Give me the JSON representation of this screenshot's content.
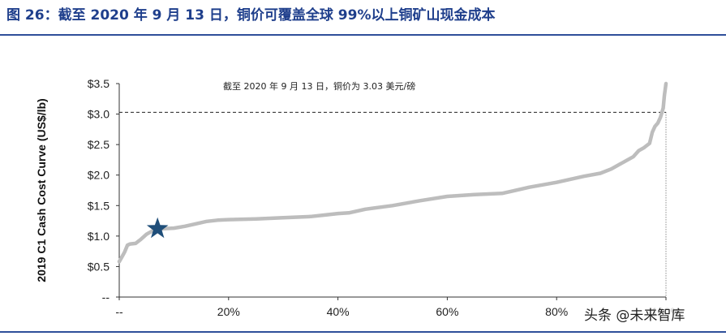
{
  "figure": {
    "title": "图 26：截至 2020 年 9 月 13 日，铜价可覆盖全球 99%以上铜矿山现金成本",
    "watermark": "头条 @未来智库"
  },
  "colors": {
    "title": "#1f3f8c",
    "rule": "#2f4f9a",
    "curve": "#bdbdbd",
    "star": "#1f4e79",
    "axis": "#333333"
  },
  "chart_data": {
    "type": "line",
    "title": "",
    "ylabel": "2019 C1 Cash Cost Curve (US$/lb)",
    "xlabel": "",
    "xlim": [
      0,
      100
    ],
    "ylim": [
      0,
      3.5
    ],
    "x_ticks": [
      0,
      20,
      40,
      60,
      80,
      100
    ],
    "x_tick_labels": [
      "--",
      "20%",
      "40%",
      "60%",
      "80%",
      "100%"
    ],
    "y_ticks": [
      0,
      0.5,
      1.0,
      1.5,
      2.0,
      2.5,
      3.0,
      3.5
    ],
    "y_tick_labels": [
      "--",
      "$0.5",
      "$1.0",
      "$1.5",
      "$2.0",
      "$2.5",
      "$3.0",
      "$3.5"
    ],
    "grid": false,
    "series": [
      {
        "x": [
          0,
          0.5,
          1,
          1.5,
          2,
          3,
          4,
          5,
          6,
          6.5,
          7,
          8,
          10,
          12,
          14,
          16,
          18,
          20,
          25,
          30,
          35,
          38,
          40,
          42,
          45,
          50,
          55,
          60,
          65,
          70,
          72,
          75,
          80,
          85,
          88,
          90,
          91,
          92,
          93,
          94,
          95,
          96,
          97,
          97.5,
          98,
          98.5,
          99,
          99.5,
          99.7,
          100
        ],
        "y": [
          0.58,
          0.66,
          0.74,
          0.85,
          0.87,
          0.88,
          0.95,
          1.03,
          1.08,
          1.1,
          1.1,
          1.12,
          1.13,
          1.16,
          1.2,
          1.24,
          1.26,
          1.27,
          1.28,
          1.3,
          1.32,
          1.35,
          1.37,
          1.38,
          1.44,
          1.5,
          1.58,
          1.65,
          1.68,
          1.7,
          1.74,
          1.8,
          1.88,
          1.98,
          2.03,
          2.1,
          2.15,
          2.2,
          2.25,
          2.3,
          2.4,
          2.45,
          2.52,
          2.7,
          2.8,
          2.85,
          2.95,
          3.1,
          3.3,
          3.5
        ]
      }
    ],
    "reference_line": {
      "y": 3.03,
      "style": "dashed"
    },
    "vertical_reference": {
      "x": 100,
      "style": "dotted"
    },
    "marker": {
      "shape": "star",
      "x": 7,
      "y": 1.12
    },
    "annotations": [
      {
        "text": "截至 2020 年 9 月 13 日，铜价为 3.03 美元/磅",
        "x": 19,
        "y": 3.3
      }
    ]
  }
}
